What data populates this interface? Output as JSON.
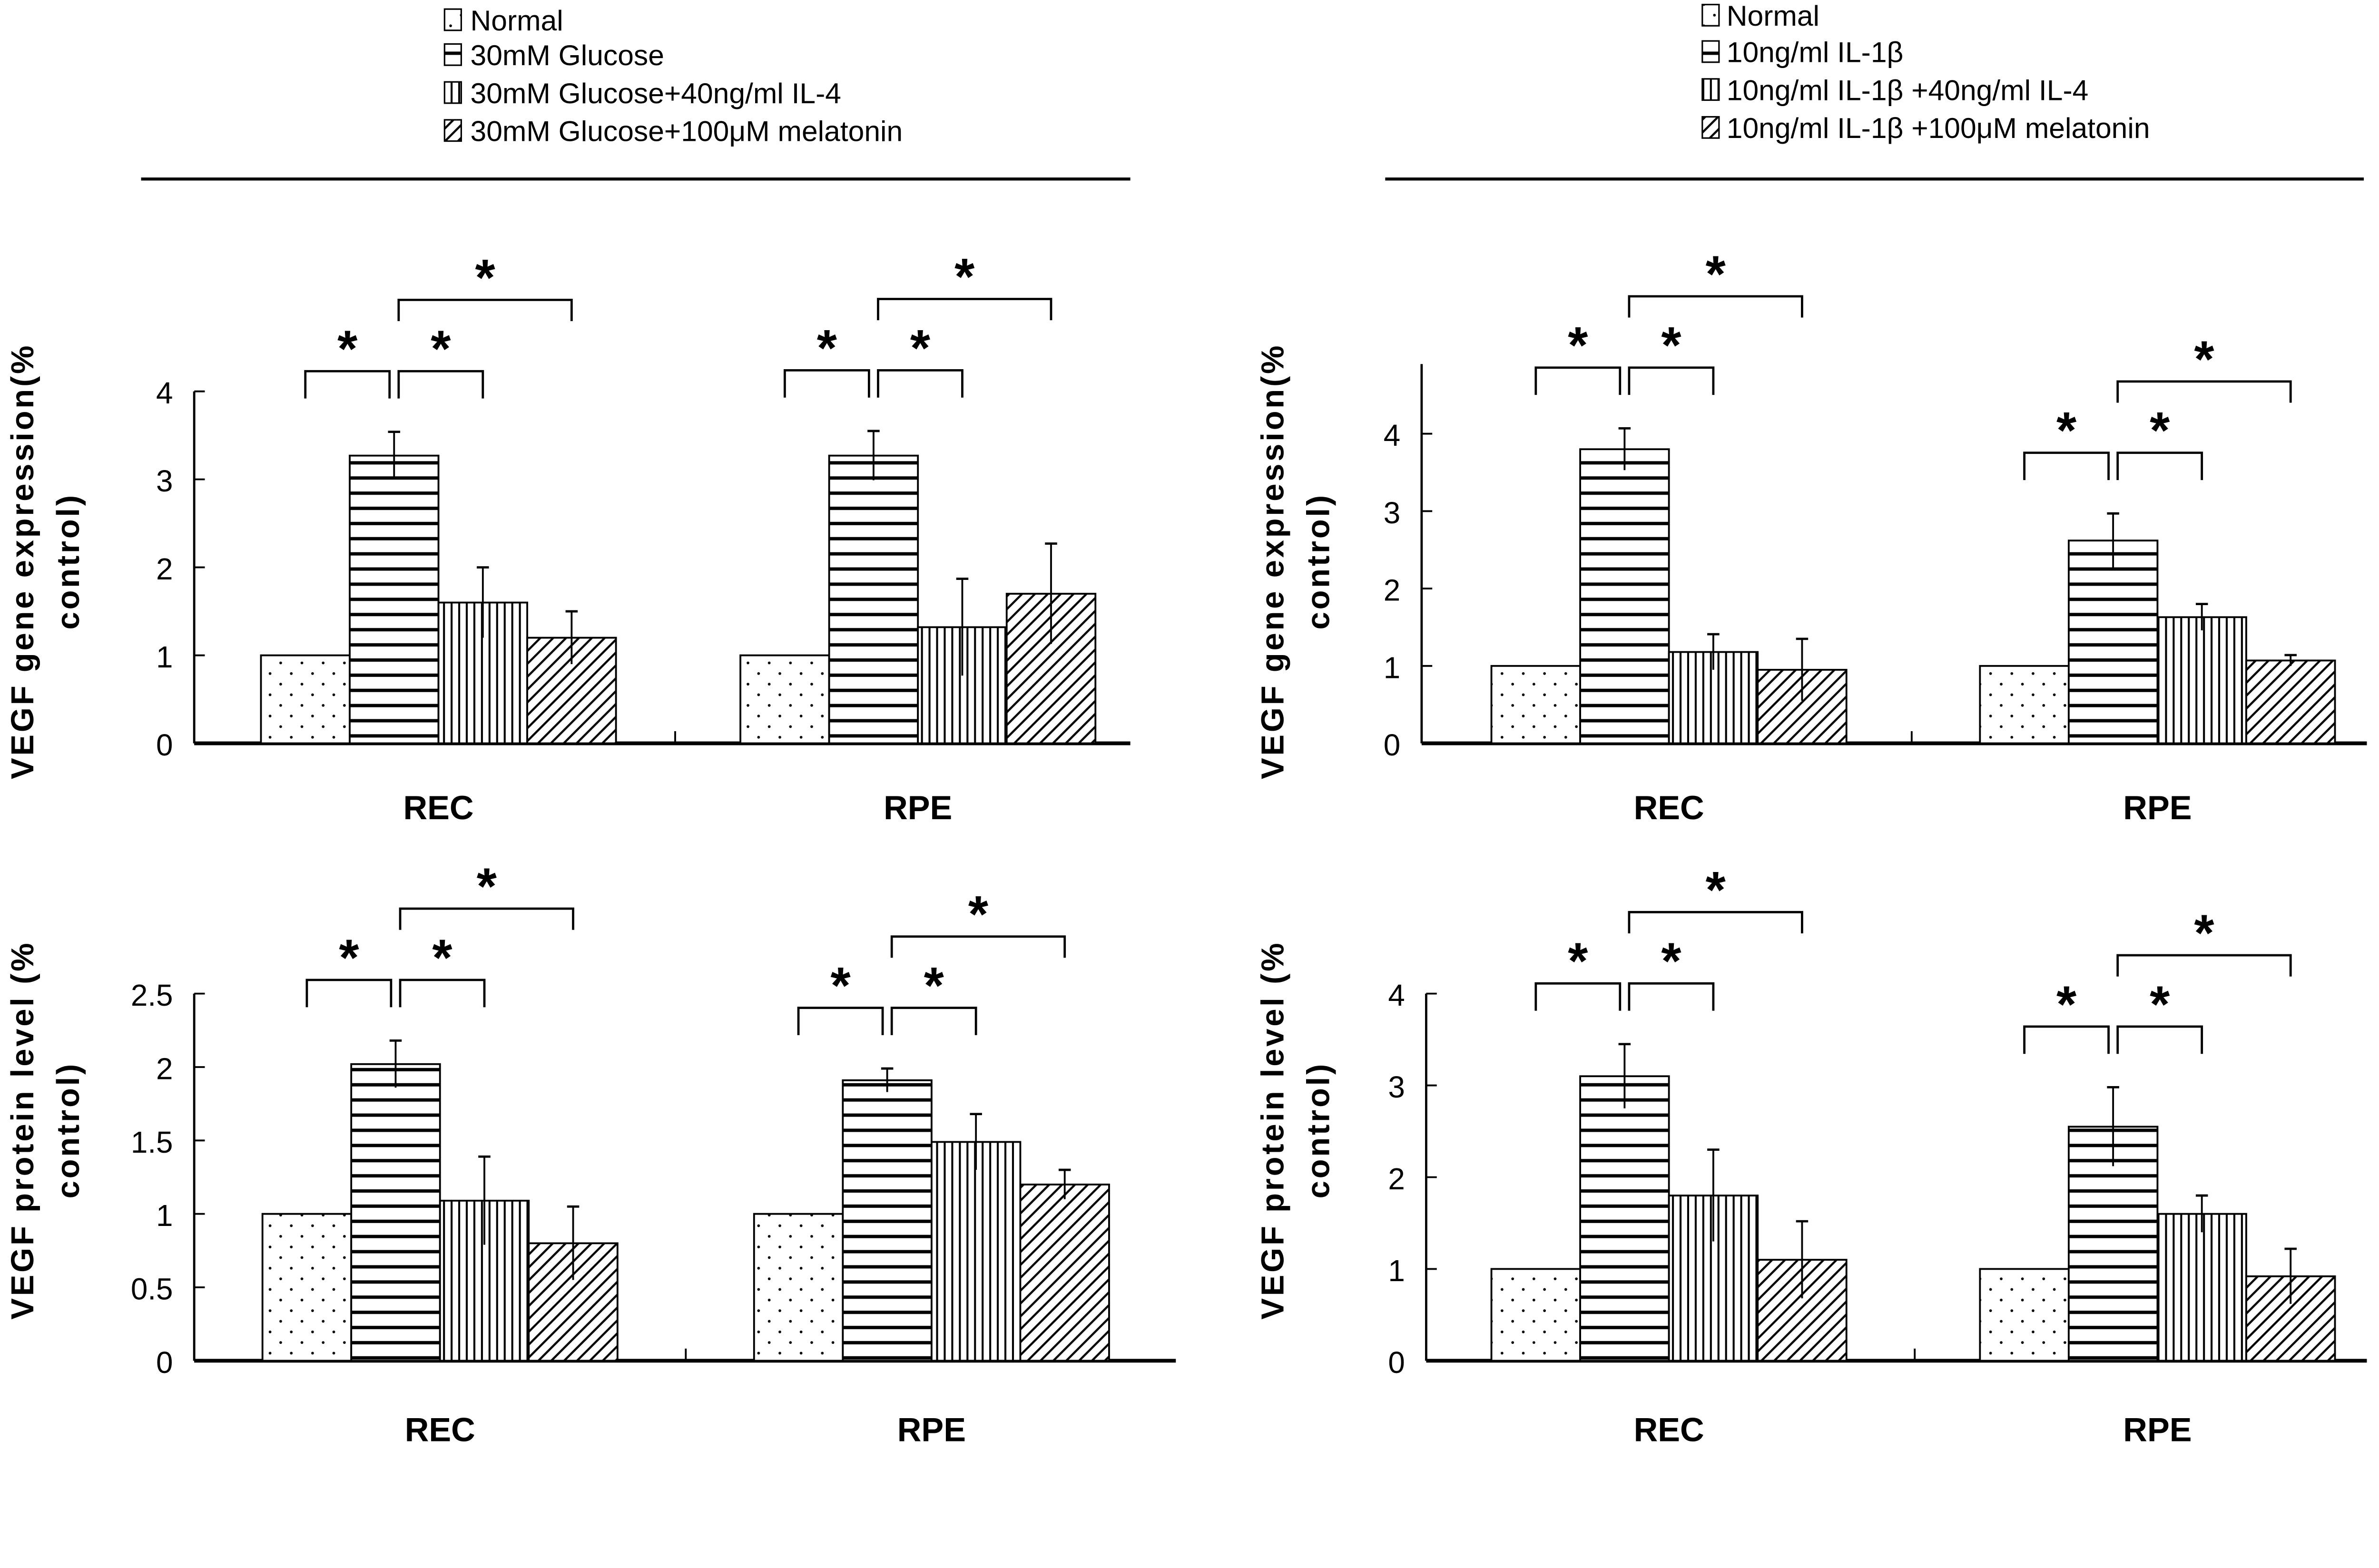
{
  "legends": [
    {
      "items": [
        "Normal",
        "30mM Glucose",
        "30mM Glucose+40ng/ml IL-4",
        " 30mM Glucose+100μM melatonin"
      ]
    },
    {
      "items": [
        "Normal",
        "10ng/ml IL-1β",
        "10ng/ml IL-1β +40ng/ml IL-4",
        "10ng/ml IL-1β +100μM melatonin"
      ]
    }
  ],
  "patterns": [
    "dots",
    "horizontal-lines",
    "vertical-lines",
    "diagonal-lines"
  ],
  "significance_marker": "*",
  "chart_data": [
    {
      "type": "bar",
      "ylabel": [
        "VEGF gene expression(%",
        "control)"
      ],
      "categories": [
        "REC",
        "RPE"
      ],
      "ylim": [
        0,
        4
      ],
      "yticks": [
        "0",
        "1",
        "2",
        "3",
        "4"
      ],
      "ytick_values": [
        0,
        1,
        2,
        3,
        4
      ],
      "legend": 0,
      "series_values": [
        [
          1,
          3.27,
          1.6,
          1.2
        ],
        [
          1,
          3.27,
          1.32,
          1.7
        ]
      ],
      "errors": [
        [
          0,
          0.27,
          0.4,
          0.3
        ],
        [
          0,
          0.28,
          0.55,
          0.57
        ]
      ],
      "significance": [
        [
          0,
          1
        ],
        [
          1,
          2
        ],
        [
          1,
          3
        ]
      ]
    },
    {
      "type": "bar",
      "ylabel": [
        "VEGF gene expression(%",
        "control)"
      ],
      "categories": [
        "REC",
        "RPE"
      ],
      "ylim": [
        0,
        4.9
      ],
      "yticks": [
        "0",
        "1",
        "2",
        "3",
        "4"
      ],
      "ytick_values": [
        0,
        1,
        2,
        3,
        4
      ],
      "legend": 1,
      "series_values": [
        [
          1,
          3.8,
          1.18,
          0.95
        ],
        [
          1,
          2.62,
          1.63,
          1.07
        ]
      ],
      "errors": [
        [
          0,
          0.27,
          0.23,
          0.4
        ],
        [
          0,
          0.35,
          0.17,
          0.07
        ]
      ],
      "significance": [
        [
          0,
          1
        ],
        [
          1,
          2
        ],
        [
          1,
          3
        ]
      ]
    },
    {
      "type": "bar",
      "ylabel": [
        "VEGF   protein level (%",
        "control)"
      ],
      "categories": [
        "REC",
        "RPE"
      ],
      "ylim": [
        0,
        2.5
      ],
      "yticks": [
        "0",
        "0.5",
        "1",
        "1.5",
        "2",
        "2.5"
      ],
      "ytick_values": [
        0,
        0.5,
        1,
        1.5,
        2,
        2.5
      ],
      "legend": 0,
      "series_values": [
        [
          1,
          2.02,
          1.09,
          0.8
        ],
        [
          1,
          1.91,
          1.49,
          1.2
        ]
      ],
      "errors": [
        [
          0,
          0.16,
          0.3,
          0.25
        ],
        [
          0,
          0.08,
          0.19,
          0.1
        ]
      ],
      "significance": [
        [
          0,
          1
        ],
        [
          1,
          2
        ],
        [
          1,
          3
        ]
      ]
    },
    {
      "type": "bar",
      "ylabel": [
        "VEGF   protein level (%",
        "control)"
      ],
      "categories": [
        "REC",
        "RPE"
      ],
      "ylim": [
        0,
        4
      ],
      "yticks": [
        "0",
        "1",
        "2",
        "3",
        "4"
      ],
      "ytick_values": [
        0,
        1,
        2,
        3,
        4
      ],
      "legend": 1,
      "series_values": [
        [
          1,
          3.1,
          1.8,
          1.1
        ],
        [
          1,
          2.55,
          1.6,
          0.92
        ]
      ],
      "errors": [
        [
          0,
          0.35,
          0.5,
          0.42
        ],
        [
          0,
          0.43,
          0.2,
          0.3
        ]
      ],
      "significance": [
        [
          0,
          1
        ],
        [
          1,
          2
        ],
        [
          1,
          3
        ]
      ]
    }
  ]
}
